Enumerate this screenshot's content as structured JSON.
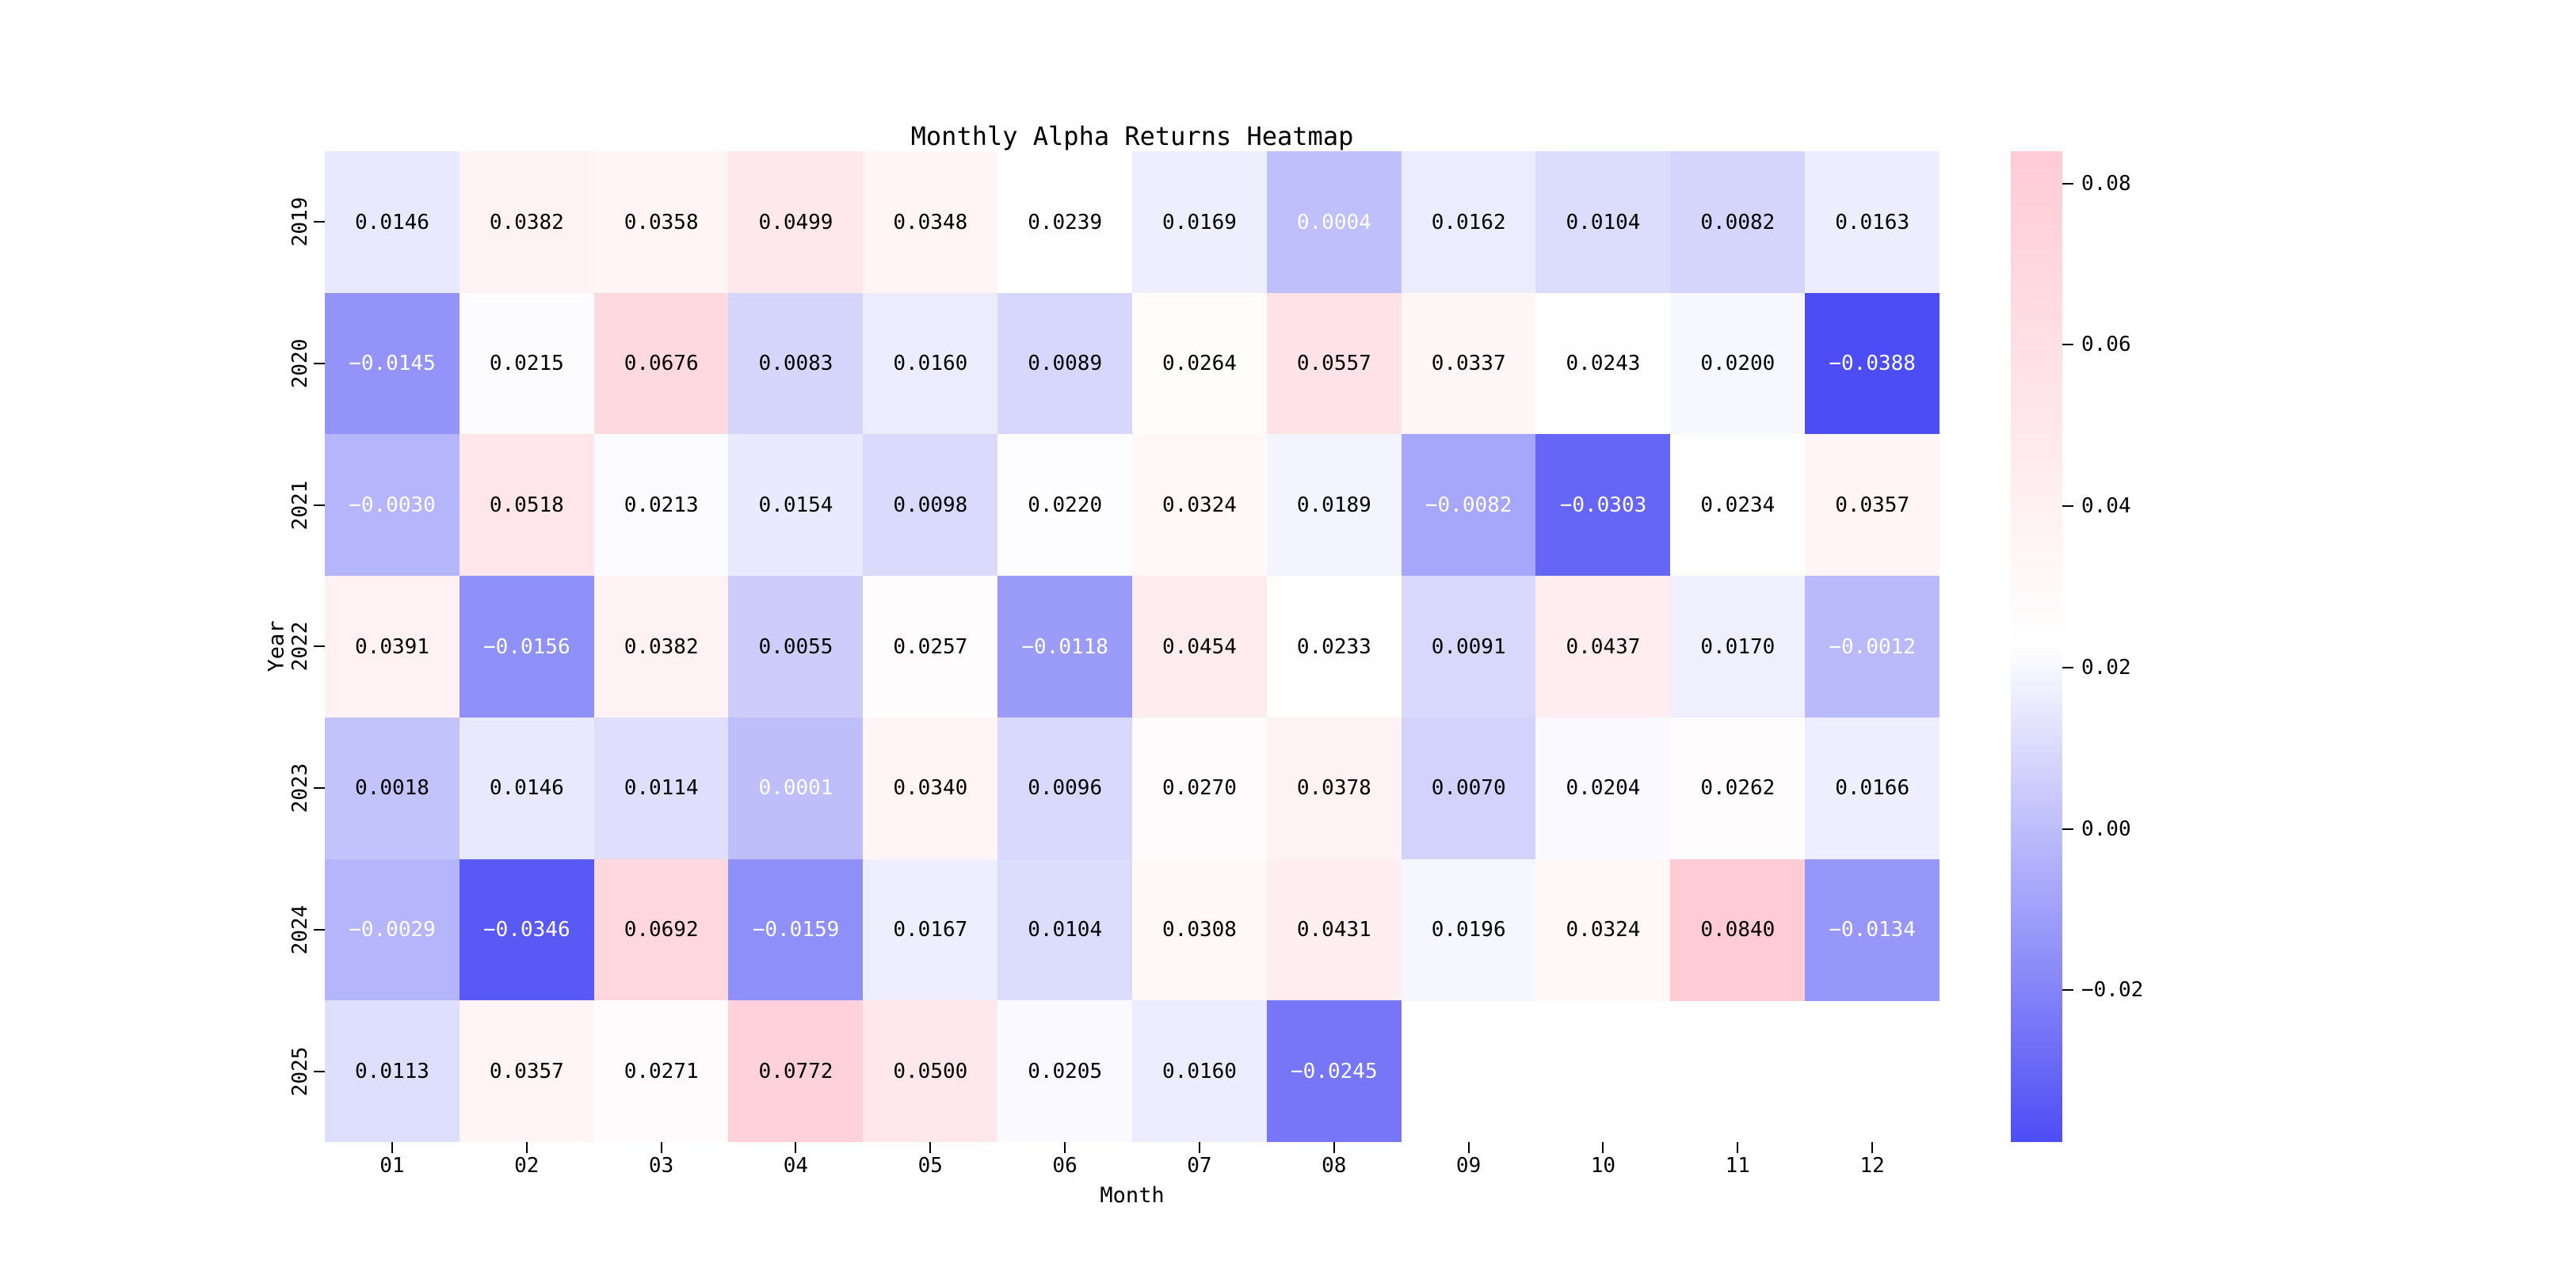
{
  "page": {
    "background": "#ffffff"
  },
  "chart_data": {
    "type": "heatmap",
    "title": "Monthly Alpha Returns Heatmap",
    "xlabel": "Month",
    "ylabel": "Year",
    "x_categories": [
      "01",
      "02",
      "03",
      "04",
      "05",
      "06",
      "07",
      "08",
      "09",
      "10",
      "11",
      "12"
    ],
    "y_categories": [
      "2019",
      "2020",
      "2021",
      "2022",
      "2023",
      "2024",
      "2025"
    ],
    "values": [
      [
        0.0146,
        0.0382,
        0.0358,
        0.0499,
        0.0348,
        0.0239,
        0.0169,
        0.0004,
        0.0162,
        0.0104,
        0.0082,
        0.0163
      ],
      [
        -0.0145,
        0.0215,
        0.0676,
        0.0083,
        0.016,
        0.0089,
        0.0264,
        0.0557,
        0.0337,
        0.0243,
        0.02,
        -0.0388
      ],
      [
        -0.003,
        0.0518,
        0.0213,
        0.0154,
        0.0098,
        0.022,
        0.0324,
        0.0189,
        -0.0082,
        -0.0303,
        0.0234,
        0.0357
      ],
      [
        0.0391,
        -0.0156,
        0.0382,
        0.0055,
        0.0257,
        -0.0118,
        0.0454,
        0.0233,
        0.0091,
        0.0437,
        0.017,
        -0.0012
      ],
      [
        0.0018,
        0.0146,
        0.0114,
        0.0001,
        0.034,
        0.0096,
        0.027,
        0.0378,
        0.007,
        0.0204,
        0.0262,
        0.0166
      ],
      [
        -0.0029,
        -0.0346,
        0.0692,
        -0.0159,
        0.0167,
        0.0104,
        0.0308,
        0.0431,
        0.0196,
        0.0324,
        0.084,
        -0.0134
      ],
      [
        0.0113,
        0.0357,
        0.0271,
        0.0772,
        0.05,
        0.0205,
        0.016,
        -0.0245,
        null,
        null,
        null,
        null
      ]
    ],
    "value_decimals": 4,
    "vmin": -0.0388,
    "vmax": 0.084,
    "colormap": {
      "low": "#4D4DF5",
      "mid": "#FFFFFF",
      "high": "#FFCBD5"
    },
    "cell_text_dark": "#000000",
    "cell_text_light": "#FFFFFF",
    "white_text_below": 0.001,
    "colorbar_ticks": [
      {
        "label": "0.08",
        "value": 0.08
      },
      {
        "label": "0.06",
        "value": 0.06
      },
      {
        "label": "0.04",
        "value": 0.04
      },
      {
        "label": "0.02",
        "value": 0.02
      },
      {
        "label": "0.00",
        "value": 0.0
      },
      {
        "label": "−0.02",
        "value": -0.02
      }
    ],
    "legend_position": "right",
    "grid": false
  }
}
